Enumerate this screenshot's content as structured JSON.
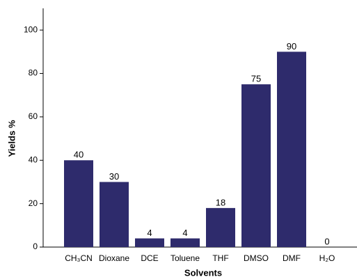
{
  "chart_data": {
    "type": "bar",
    "categories": [
      "CH₃CN",
      "Dioxane",
      "DCE",
      "Toluene",
      "THF",
      "DMSO",
      "DMF",
      "H₂O"
    ],
    "values": [
      40,
      30,
      4,
      4,
      18,
      75,
      90,
      0
    ],
    "color": "#2e2b6c",
    "x_label": "Solvents",
    "y_label": "Yields %",
    "ylim": [
      0,
      110
    ],
    "yticks": [
      0,
      20,
      40,
      60,
      80,
      100
    ],
    "grid": false
  }
}
